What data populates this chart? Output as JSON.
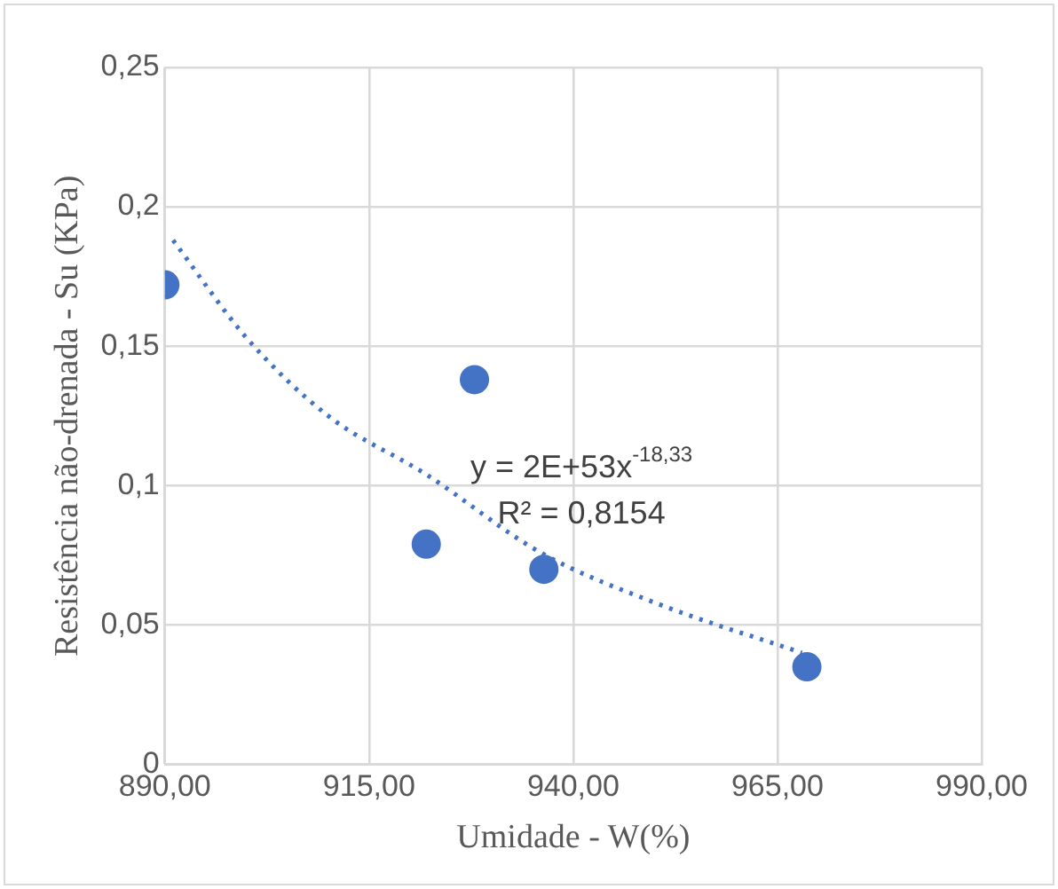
{
  "chart_data": {
    "type": "scatter",
    "xlabel": "Umidade - W(%)",
    "ylabel": "Resistência não-drenada - Su (KPa)",
    "xlim": [
      890,
      990
    ],
    "xticks": [
      {
        "value": 890,
        "label": "890,00"
      },
      {
        "value": 915,
        "label": "915,00"
      },
      {
        "value": 940,
        "label": "940,00"
      },
      {
        "value": 965,
        "label": "965,00"
      },
      {
        "value": 990,
        "label": "990,00"
      }
    ],
    "ylim": [
      0,
      0.25
    ],
    "yticks": [
      0,
      {
        "value": 0.05,
        "label": "0,05"
      },
      {
        "value": 0.1,
        "label": "0,1"
      },
      {
        "value": 0.15,
        "label": "0,15"
      },
      {
        "value": 0.2,
        "label": "0,2"
      },
      {
        "value": 0.25,
        "label": "0,25"
      }
    ],
    "grid": true,
    "legend": false,
    "marker": "circle",
    "series": [
      {
        "type": "scatter",
        "color": "#4472c4",
        "x": [
          890,
          922,
          927.9,
          936.4,
          968.6
        ],
        "values": [
          0.172,
          0.079,
          0.138,
          0.07,
          0.035
        ]
      },
      {
        "type": "line",
        "color": "#4472c4",
        "line_style": "dotted",
        "marker": "none",
        "x": [
          891,
          900,
          910,
          922,
          936,
          950,
          968
        ],
        "values": [
          0.188,
          0.153,
          0.125,
          0.104,
          0.076,
          0.058,
          0.04
        ]
      }
    ],
    "annotations": [
      "y = 2E+53x$^{-18,33}$",
      "R² = 0,8154"
    ]
  }
}
